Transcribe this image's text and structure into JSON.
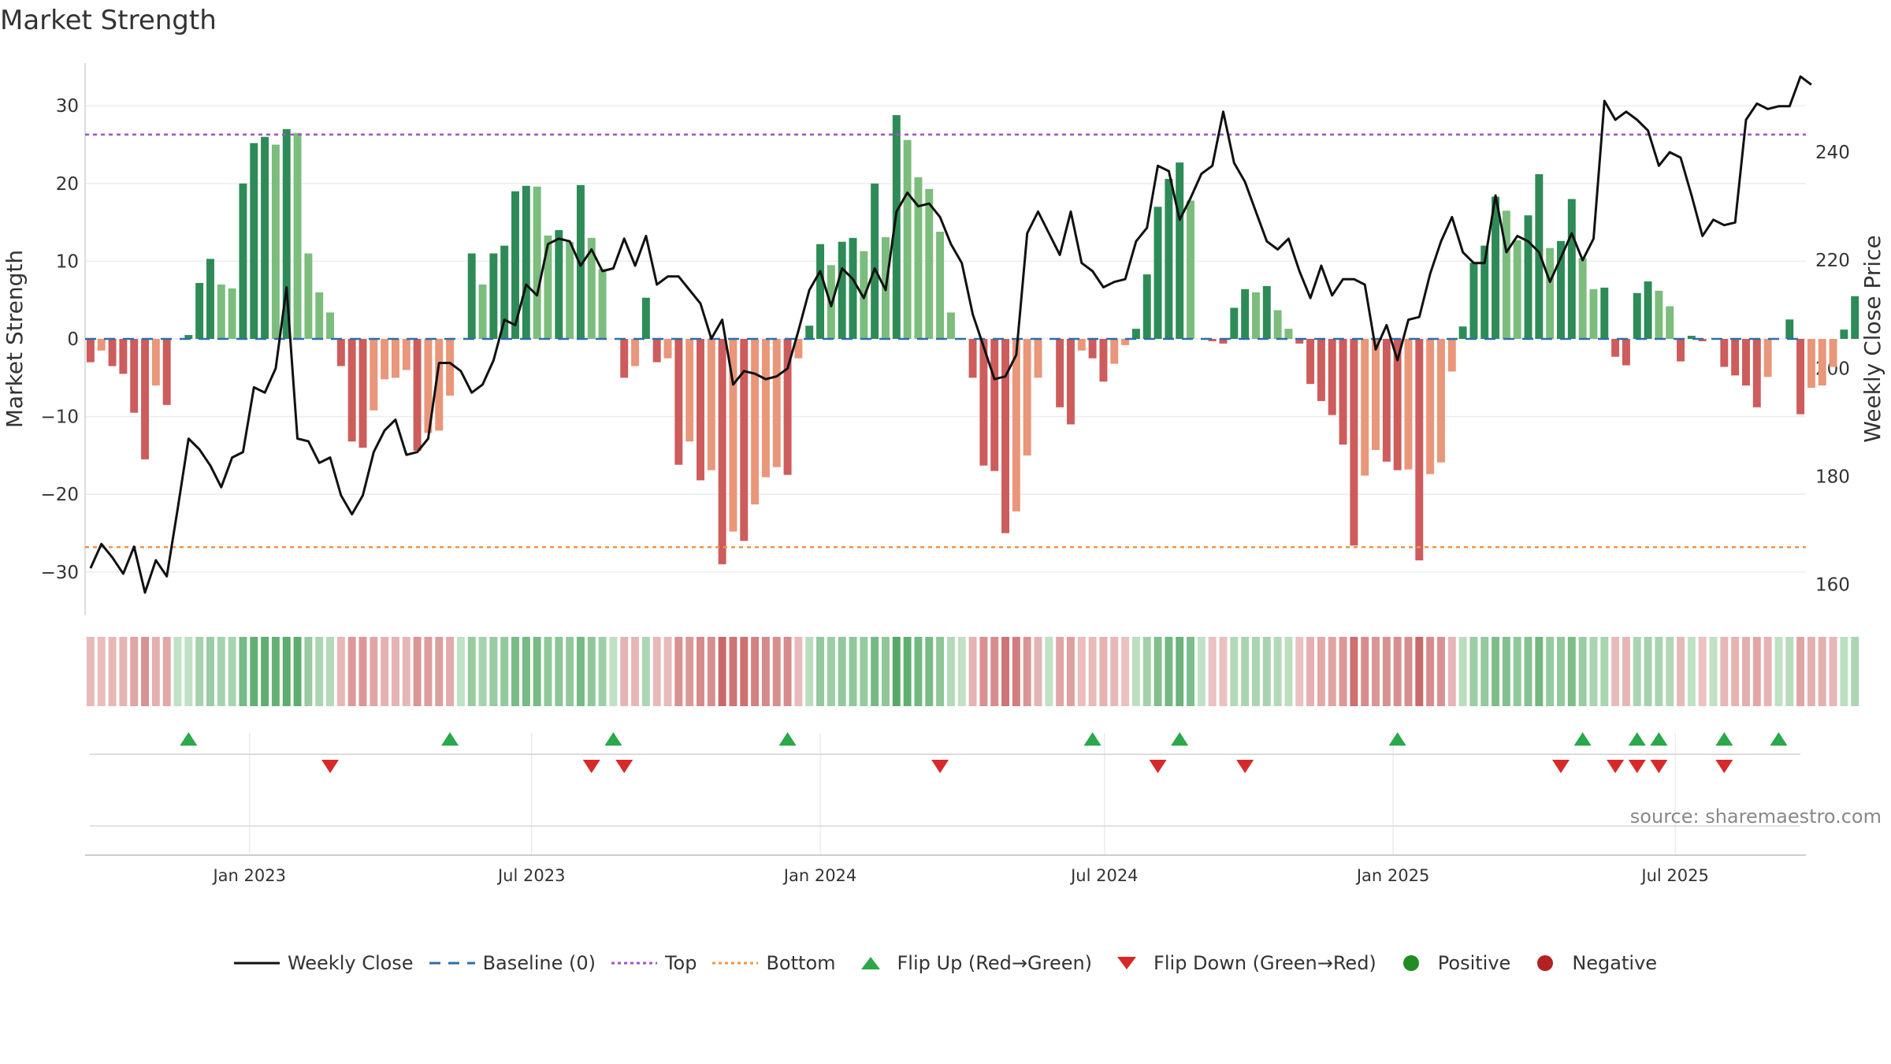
{
  "chart_data": {
    "type": "bar",
    "title": "Market Strength",
    "ylabel_left": "Market Strength",
    "ylabel_right": "Weekly Close Price",
    "ylim_left": [
      -35.5,
      35.5
    ],
    "ylim_right": [
      154.4,
      256.5
    ],
    "yticks_left": [
      30,
      20,
      10,
      0,
      -10,
      -20,
      -30
    ],
    "ytick_labels_left": [
      "30",
      "20",
      "10",
      "0",
      "−10",
      "−20",
      "−30"
    ],
    "yticks_right": [
      240,
      220,
      200,
      180,
      160
    ],
    "ytick_labels_right": [
      "240",
      "220",
      "200",
      "180",
      "160"
    ],
    "top_level": 26.3,
    "bottom_level": -26.8,
    "xlim_weeks": [
      -0.5,
      157.5
    ],
    "x_ticks": [
      {
        "label": "Jan 2023",
        "week": 14.6
      },
      {
        "label": "Jul 2023",
        "week": 40.5
      },
      {
        "label": "Jan 2024",
        "week": 67
      },
      {
        "label": "Jul 2024",
        "week": 93.1
      },
      {
        "label": "Jan 2025",
        "week": 119.6
      },
      {
        "label": "Jul 2025",
        "week": 145.5
      }
    ],
    "strength": [
      -3,
      -1.5,
      -3.5,
      -4.5,
      -9.5,
      -15.5,
      -6,
      -8.5,
      0,
      0.5,
      7.2,
      10.3,
      7,
      6.5,
      20,
      25.2,
      26,
      25,
      27,
      26.5,
      11,
      6,
      3.4,
      -3.5,
      -13.2,
      -14,
      -9.2,
      -5.2,
      -5,
      -4,
      -14.4,
      -12.1,
      -11.8,
      -7.3,
      0,
      11,
      7,
      11,
      12,
      19,
      19.7,
      19.6,
      13.3,
      14,
      12.5,
      19.8,
      13,
      9,
      0,
      -5,
      -3.5,
      5.3,
      -3,
      -2.5,
      -16.2,
      -13.2,
      -18.2,
      -16.9,
      -29,
      -24.8,
      -26,
      -21.3,
      -17.8,
      -16.5,
      -17.5,
      -2.5,
      1.7,
      12.2,
      9.5,
      12.5,
      13,
      11.3,
      20,
      13.1,
      28.8,
      25.6,
      20.8,
      19.3,
      13.8,
      3.4,
      0,
      -5,
      -16.3,
      -17,
      -25,
      -22.2,
      -15,
      -5,
      0,
      -8.8,
      -11,
      -1.5,
      -2.5,
      -5.5,
      -3.2,
      -0.8,
      1.3,
      8.3,
      17,
      20.6,
      22.7,
      17.8,
      0,
      -0.3,
      -0.6,
      4,
      6.4,
      6,
      6.8,
      3.7,
      1.3,
      -0.6,
      -5.8,
      -8,
      -9.8,
      -13.6,
      -26.6,
      -17.6,
      -14.3,
      -15.8,
      -16.9,
      -16.8,
      -28.5,
      -17.4,
      -15.9,
      -4.2,
      1.6,
      9.8,
      12,
      18.3,
      16.5,
      12.7,
      15.9,
      21.2,
      11.7,
      12.6,
      18,
      10.4,
      6.4,
      6.6,
      -2.3,
      -3.4,
      5.9,
      7.4,
      6.2,
      4.2,
      -2.9,
      0.4,
      -0.3,
      0,
      -3.6,
      -4.7,
      -6,
      -8.8,
      -4.9,
      0,
      2.5,
      -9.7,
      -6.3,
      -6,
      -3.6,
      1.2,
      5.5
    ],
    "weekly_close": [
      163,
      167.5,
      165,
      162,
      167,
      158.5,
      164.5,
      161.5,
      174,
      187,
      185,
      182,
      178,
      183.5,
      184.5,
      196.5,
      195.5,
      200,
      215,
      187,
      186.5,
      182.5,
      183.5,
      176.5,
      173,
      176.5,
      184.5,
      188.5,
      190.5,
      184,
      184.5,
      187,
      201,
      201,
      199.5,
      195.5,
      197,
      201.5,
      209,
      208,
      215.5,
      213.5,
      223,
      224,
      223.5,
      219,
      222,
      218,
      218.5,
      224,
      219,
      224.5,
      215.5,
      217,
      217,
      214.5,
      212,
      205.5,
      209,
      197,
      199.5,
      199,
      198,
      198.5,
      200,
      207,
      214.5,
      218,
      211.5,
      218.5,
      216.5,
      213,
      218.5,
      214.5,
      229,
      232.5,
      230,
      230.5,
      228,
      223,
      219.5,
      210,
      204,
      198,
      198.5,
      202.5,
      225,
      229,
      225,
      221,
      229,
      219.5,
      218,
      215,
      216,
      216.5,
      223.5,
      226,
      237.5,
      236.5,
      227.5,
      231.5,
      236,
      237.5,
      247.5,
      238,
      234.5,
      229,
      223.5,
      222,
      224,
      218,
      213,
      219,
      213.5,
      216.5,
      216.5,
      215.5,
      203.5,
      208,
      201.5,
      209,
      209.5,
      217.5,
      223.5,
      228,
      221.5,
      219.5,
      219.5,
      232,
      221.5,
      224.5,
      223.5,
      221.5,
      216,
      220.5,
      225,
      220,
      224,
      249.5,
      246,
      247.5,
      246,
      244,
      237.5,
      240,
      239,
      232,
      224.5,
      227.5,
      226.5,
      227,
      246,
      249,
      248,
      248.5,
      248.5,
      254,
      252.5
    ],
    "flip_up": [
      9,
      33,
      48,
      64,
      92,
      100,
      120,
      137,
      142,
      144,
      150,
      155
    ],
    "flip_down": [
      22,
      46,
      49,
      78,
      98,
      106,
      135,
      140,
      142,
      144,
      150
    ],
    "series_colors": {
      "strong_green": "#2e8b57",
      "light_green": "#7cbd7d",
      "strong_red": "#cd5c5c",
      "light_red": "#e9967a",
      "close_line": "#111111",
      "baseline": "#2b6fa8",
      "top": "#9e55c6",
      "bottom": "#f0944a",
      "flip_up": "#2aa84a",
      "flip_down": "#d62a2a"
    },
    "source_text": "source: sharemaestro.com",
    "legend": [
      {
        "label": "Weekly Close",
        "kind": "line"
      },
      {
        "label": "Baseline (0)",
        "kind": "dash"
      },
      {
        "label": "Top",
        "kind": "dot-purple"
      },
      {
        "label": "Bottom",
        "kind": "dot-orange"
      },
      {
        "label": "Flip Up (Red→Green)",
        "kind": "tri-up"
      },
      {
        "label": "Flip Down (Green→Red)",
        "kind": "tri-down"
      },
      {
        "label": "Positive",
        "kind": "circle-green"
      },
      {
        "label": "Negative",
        "kind": "circle-red"
      }
    ]
  }
}
